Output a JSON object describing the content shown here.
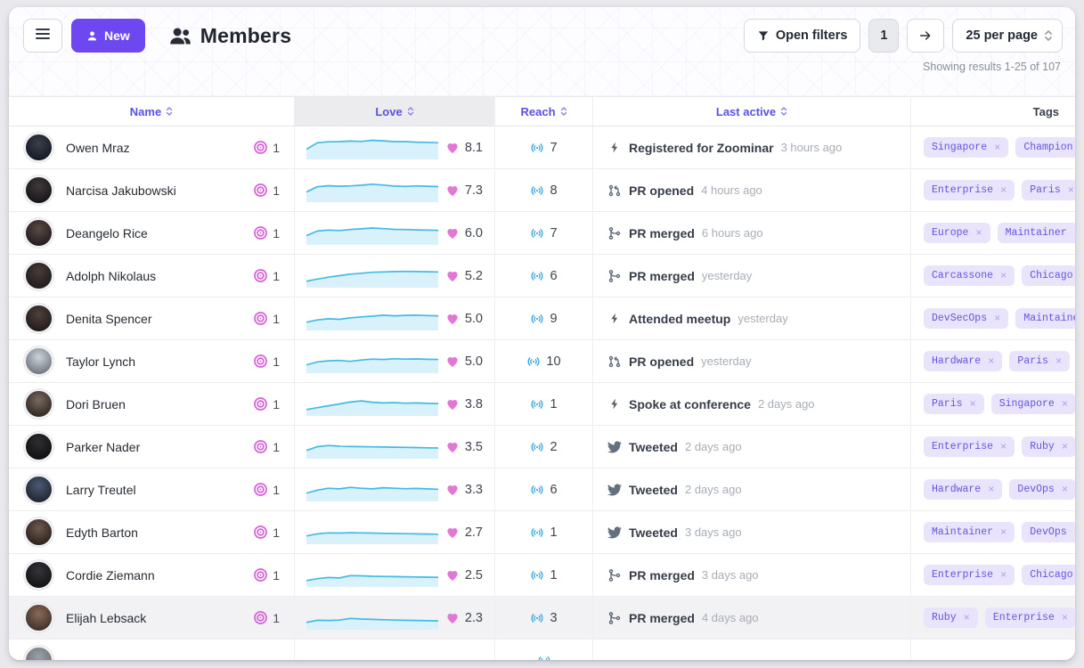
{
  "header": {
    "new_label": "New",
    "title": "Members",
    "open_filters_label": "Open filters",
    "page_number": "1",
    "per_page_label": "25 per page",
    "results_summary": "Showing results 1-25 of 107"
  },
  "table": {
    "columns": {
      "name": "Name",
      "love": "Love",
      "reach": "Reach",
      "last_active": "Last active",
      "tags": "Tags"
    }
  },
  "colors": {
    "accent_purple": "#6d48f0",
    "header_link": "#5a51e3",
    "spark_line": "#41bbe6",
    "spark_fill": "#d9f1fb",
    "heart_pink": "#e378d4",
    "orbit_magenta": "#d45fd6",
    "reach_blue": "#38a7de",
    "tag_bg": "#e9e4fc",
    "tag_text": "#6355dc"
  },
  "members": [
    {
      "name": "Owen Mraz",
      "orbit_level": "1",
      "love": "8.1",
      "reach": "7",
      "activity": {
        "icon": "zap",
        "label": "Registered for Zoominar",
        "time": "3 hours ago"
      },
      "tags": [
        "Singapore",
        "Champion"
      ],
      "avatar": [
        "#3a3f4a",
        "#151821"
      ],
      "spark": [
        4,
        7.5,
        8,
        8.1,
        8.4,
        8.2,
        8.8,
        8.5,
        8.1,
        8.1,
        7.8,
        7.7,
        7.5
      ]
    },
    {
      "name": "Narcisa Jakubowski",
      "orbit_level": "1",
      "love": "7.3",
      "reach": "8",
      "activity": {
        "icon": "pr-open",
        "label": "PR opened",
        "time": "4 hours ago"
      },
      "tags": [
        "Enterprise",
        "Paris"
      ],
      "avatar": [
        "#3f3a38",
        "#17141a"
      ],
      "spark": [
        4,
        6.8,
        7.4,
        7.1,
        7.3,
        7.6,
        8.2,
        7.7,
        7.2,
        7,
        7.3,
        7.1,
        6.9
      ]
    },
    {
      "name": "Deangelo Rice",
      "orbit_level": "1",
      "love": "6.0",
      "reach": "7",
      "activity": {
        "icon": "pr-merge",
        "label": "PR merged",
        "time": "6 hours ago"
      },
      "tags": [
        "Europe",
        "Maintainer"
      ],
      "avatar": [
        "#5a4a42",
        "#221c22"
      ],
      "spark": [
        3.5,
        6,
        6.5,
        6.3,
        6.8,
        7.2,
        7.6,
        7.3,
        6.9,
        6.8,
        6.6,
        6.5,
        6.4
      ]
    },
    {
      "name": "Adolph Nikolaus",
      "orbit_level": "1",
      "love": "5.2",
      "reach": "6",
      "activity": {
        "icon": "pr-merge",
        "label": "PR merged",
        "time": "yesterday"
      },
      "tags": [
        "Carcassone",
        "Chicago"
      ],
      "avatar": [
        "#4a3c34",
        "#1d1a1e"
      ],
      "spark": [
        2,
        3.2,
        4.2,
        5,
        5.8,
        6.3,
        6.8,
        7,
        7.2,
        7.3,
        7.2,
        7.1,
        7
      ]
    },
    {
      "name": "Denita Spencer",
      "orbit_level": "1",
      "love": "5.0",
      "reach": "9",
      "activity": {
        "icon": "zap",
        "label": "Attended meetup",
        "time": "yesterday"
      },
      "tags": [
        "DevSecOps",
        "Maintainer"
      ],
      "avatar": [
        "#4d423c",
        "#201a18"
      ],
      "spark": [
        3,
        4.2,
        4.8,
        4.5,
        5.3,
        5.8,
        6.2,
        6.7,
        6.4,
        6.6,
        6.7,
        6.5,
        6.4
      ]
    },
    {
      "name": "Taylor Lynch",
      "orbit_level": "1",
      "love": "5.0",
      "reach": "10",
      "activity": {
        "icon": "pr-open",
        "label": "PR opened",
        "time": "yesterday"
      },
      "tags": [
        "Hardware",
        "Paris"
      ],
      "avatar": [
        "#cfd4da",
        "#6e757e"
      ],
      "spark": [
        3,
        4.6,
        5.2,
        5.4,
        4.9,
        5.6,
        6.1,
        5.9,
        6.3,
        6.1,
        6.2,
        6,
        5.9
      ]
    },
    {
      "name": "Dori Bruen",
      "orbit_level": "1",
      "love": "3.8",
      "reach": "1",
      "activity": {
        "icon": "zap",
        "label": "Spoke at conference",
        "time": "2 days ago"
      },
      "tags": [
        "Paris",
        "Singapore"
      ],
      "avatar": [
        "#7a6a5e",
        "#2e2622"
      ],
      "spark": [
        2,
        3,
        4,
        5,
        6,
        6.6,
        5.9,
        5.5,
        5.7,
        5.4,
        5.5,
        5.3,
        5.2
      ]
    },
    {
      "name": "Parker Nader",
      "orbit_level": "1",
      "love": "3.5",
      "reach": "2",
      "activity": {
        "icon": "twitter",
        "label": "Tweeted",
        "time": "2 days ago"
      },
      "tags": [
        "Enterprise",
        "Ruby"
      ],
      "avatar": [
        "#2e2e31",
        "#101013"
      ],
      "spark": [
        3,
        5,
        5.6,
        5.3,
        5.1,
        5,
        4.9,
        4.8,
        4.7,
        4.6,
        4.5,
        4.4,
        4.3
      ]
    },
    {
      "name": "Larry Treutel",
      "orbit_level": "1",
      "love": "3.3",
      "reach": "6",
      "activity": {
        "icon": "twitter",
        "label": "Tweeted",
        "time": "2 days ago"
      },
      "tags": [
        "Hardware",
        "DevOps"
      ],
      "avatar": [
        "#4a5a74",
        "#20242e"
      ],
      "spark": [
        3,
        4.6,
        5.6,
        5.3,
        6.1,
        5.6,
        5.3,
        5.9,
        5.6,
        5.4,
        5.5,
        5.3,
        5.1
      ]
    },
    {
      "name": "Edyth Barton",
      "orbit_level": "1",
      "love": "2.7",
      "reach": "1",
      "activity": {
        "icon": "twitter",
        "label": "Tweeted",
        "time": "3 days ago"
      },
      "tags": [
        "Maintainer",
        "DevOps"
      ],
      "avatar": [
        "#6e5a4c",
        "#2a211d"
      ],
      "spark": [
        3,
        4.1,
        4.6,
        4.5,
        4.7,
        4.6,
        4.5,
        4.4,
        4.3,
        4.2,
        4.1,
        4,
        3.9
      ]
    },
    {
      "name": "Cordie Ziemann",
      "orbit_level": "1",
      "love": "2.5",
      "reach": "1",
      "activity": {
        "icon": "pr-merge",
        "label": "PR merged",
        "time": "3 days ago"
      },
      "tags": [
        "Enterprise",
        "Chicago"
      ],
      "avatar": [
        "#35353a",
        "#121215"
      ],
      "spark": [
        2,
        3,
        3.6,
        3.4,
        4.6,
        4.5,
        4.3,
        4.2,
        4.1,
        4,
        3.9,
        3.8,
        3.7
      ]
    },
    {
      "name": "Elijah Lebsack",
      "orbit_level": "1",
      "love": "2.3",
      "reach": "3",
      "activity": {
        "icon": "pr-merge",
        "label": "PR merged",
        "time": "4 days ago"
      },
      "tags": [
        "Ruby",
        "Enterprise"
      ],
      "avatar": [
        "#8a6b57",
        "#3f2f28"
      ],
      "spark": [
        2.5,
        3.6,
        3.5,
        3.7,
        4.6,
        4.3,
        4.1,
        3.9,
        3.7,
        3.6,
        3.5,
        3.4,
        3.3
      ],
      "highlighted": true
    },
    {
      "name": "",
      "orbit_level": "",
      "love": "",
      "reach": "",
      "activity": {
        "icon": "",
        "label": "",
        "time": ""
      },
      "tags": [],
      "avatar": [
        "#9aa0a8",
        "#6a7076"
      ],
      "spark": [],
      "partial": true
    }
  ]
}
